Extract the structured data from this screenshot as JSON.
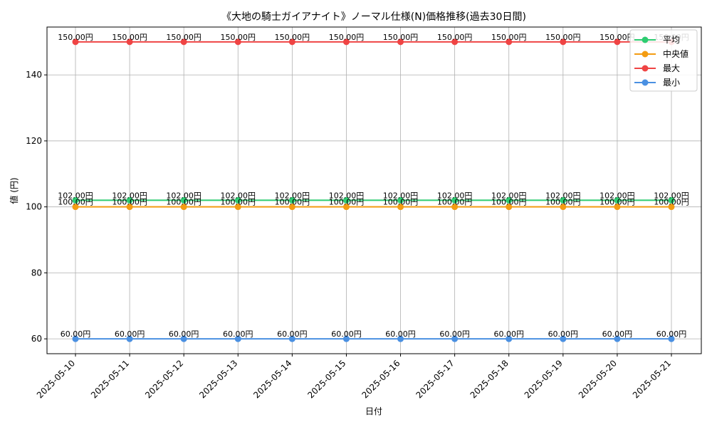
{
  "chart_data": {
    "type": "line",
    "title": "《大地の騎士ガイアナイト》ノーマル仕様(N)価格推移(過去30日間)",
    "xlabel": "日付",
    "ylabel": "値 (円)",
    "categories": [
      "2025-05-10",
      "2025-05-11",
      "2025-05-12",
      "2025-05-13",
      "2025-05-14",
      "2025-05-15",
      "2025-05-16",
      "2025-05-17",
      "2025-05-18",
      "2025-05-19",
      "2025-05-20",
      "2025-05-21"
    ],
    "ylim": [
      55.5,
      154.5
    ],
    "yticks": [
      60,
      80,
      100,
      120,
      140
    ],
    "grid": true,
    "legend_position": "top-right",
    "value_label_suffix": "円",
    "series": [
      {
        "name": "平均",
        "color": "#2ecc71",
        "values": [
          102,
          102,
          102,
          102,
          102,
          102,
          102,
          102,
          102,
          102,
          102,
          102
        ],
        "labels": [
          "102.00円",
          "102.00円",
          "102.00円",
          "102.00円",
          "102.00円",
          "102.00円",
          "102.00円",
          "102.00円",
          "102.00円",
          "102.00円",
          "102.00円",
          "102.00円"
        ]
      },
      {
        "name": "中央値",
        "color": "#f39c12",
        "values": [
          100,
          100,
          100,
          100,
          100,
          100,
          100,
          100,
          100,
          100,
          100,
          100
        ],
        "labels": [
          "100.00円",
          "100.00円",
          "100.00円",
          "100.00円",
          "100.00円",
          "100.00円",
          "100.00円",
          "100.00円",
          "100.00円",
          "100.00円",
          "100.00円",
          "100.00円"
        ]
      },
      {
        "name": "最大",
        "color": "#ef4444",
        "values": [
          150,
          150,
          150,
          150,
          150,
          150,
          150,
          150,
          150,
          150,
          150,
          150
        ],
        "labels": [
          "150.00円",
          "150.00円",
          "150.00円",
          "150.00円",
          "150.00円",
          "150.00円",
          "150.00円",
          "150.00円",
          "150.00円",
          "150.00円",
          "150.00円",
          "150.00円"
        ]
      },
      {
        "name": "最小",
        "color": "#4a90e2",
        "values": [
          60,
          60,
          60,
          60,
          60,
          60,
          60,
          60,
          60,
          60,
          60,
          60
        ],
        "labels": [
          "60.00円",
          "60.00円",
          "60.00円",
          "60.00円",
          "60.00円",
          "60.00円",
          "60.00円",
          "60.00円",
          "60.00円",
          "60.00円",
          "60.00円",
          "60.00円"
        ]
      }
    ]
  }
}
